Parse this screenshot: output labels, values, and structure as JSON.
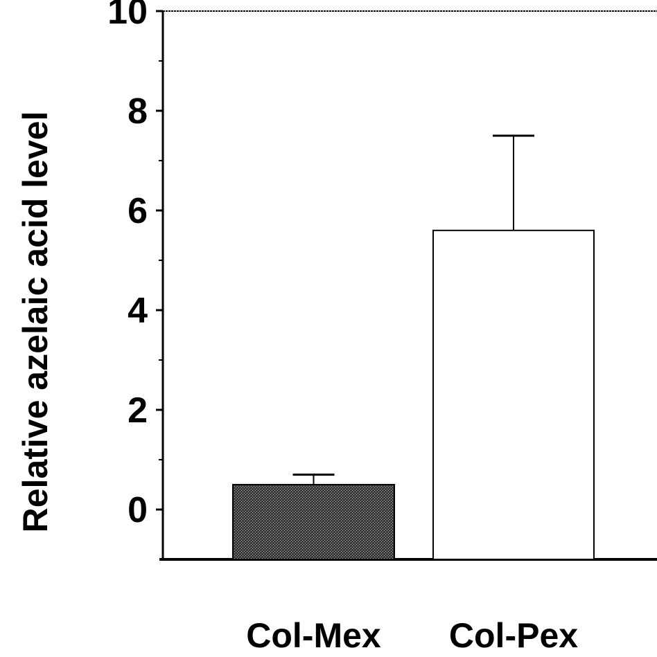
{
  "chart_data": {
    "type": "bar",
    "categories": [
      "Col-Mex",
      "Col-Pex"
    ],
    "values": [
      0.5,
      5.6
    ],
    "error_upper": [
      0.7,
      7.5
    ],
    "ylabel": "Relative azelaic acid level",
    "ylim": [
      -1,
      10
    ],
    "yticks": [
      "0",
      "2",
      "4",
      "6",
      "8",
      "10"
    ],
    "bar_fills": [
      "patterned-dark",
      "white"
    ],
    "grid": false,
    "legend": "none"
  }
}
